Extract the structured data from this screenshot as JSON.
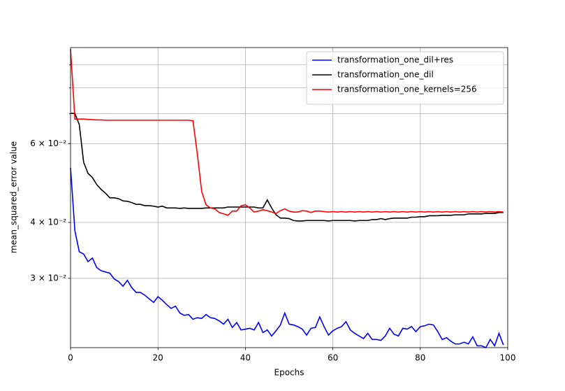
{
  "chart_data": {
    "type": "line",
    "xlabel": "Epochs",
    "ylabel": "mean_squared_error value",
    "x": [
      0,
      1,
      2,
      3,
      4,
      5,
      6,
      7,
      8,
      9,
      10,
      11,
      12,
      13,
      14,
      15,
      16,
      17,
      18,
      19,
      20,
      21,
      22,
      23,
      24,
      25,
      26,
      27,
      28,
      29,
      30,
      31,
      32,
      33,
      34,
      35,
      36,
      37,
      38,
      39,
      40,
      41,
      42,
      43,
      44,
      45,
      46,
      47,
      48,
      49,
      50,
      51,
      52,
      53,
      54,
      55,
      56,
      57,
      58,
      59,
      60,
      61,
      62,
      63,
      64,
      65,
      66,
      67,
      68,
      69,
      70,
      71,
      72,
      73,
      74,
      75,
      76,
      77,
      78,
      79,
      80,
      81,
      82,
      83,
      84,
      85,
      86,
      87,
      88,
      89,
      90,
      91,
      92,
      93,
      94,
      95,
      96,
      97,
      98,
      99
    ],
    "series": [
      {
        "name": "transformation_one_dil+res",
        "color": "#0000ff",
        "values": [
          0.053,
          0.0383,
          0.0344,
          0.034,
          0.0327,
          0.0333,
          0.0317,
          0.0312,
          0.031,
          0.0308,
          0.0299,
          0.0295,
          0.0288,
          0.0297,
          0.0286,
          0.0279,
          0.0279,
          0.0275,
          0.027,
          0.0265,
          0.0273,
          0.0268,
          0.0262,
          0.0257,
          0.026,
          0.0251,
          0.0248,
          0.0249,
          0.0243,
          0.0245,
          0.0244,
          0.0249,
          0.0245,
          0.0244,
          0.0241,
          0.0237,
          0.0243,
          0.0233,
          0.0239,
          0.023,
          0.0231,
          0.0232,
          0.023,
          0.0239,
          0.0227,
          0.023,
          0.0223,
          0.0229,
          0.0236,
          0.0251,
          0.0237,
          0.0236,
          0.0234,
          0.0231,
          0.0224,
          0.0232,
          0.0233,
          0.0246,
          0.0234,
          0.0224,
          0.0229,
          0.0232,
          0.0234,
          0.024,
          0.023,
          0.0226,
          0.0223,
          0.022,
          0.0226,
          0.0219,
          0.0219,
          0.0218,
          0.0223,
          0.0232,
          0.0225,
          0.0223,
          0.0232,
          0.0231,
          0.0234,
          0.0228,
          0.0234,
          0.0235,
          0.0237,
          0.0236,
          0.0228,
          0.0219,
          0.0221,
          0.0217,
          0.0214,
          0.0214,
          0.0216,
          0.0214,
          0.0222,
          0.0212,
          0.0212,
          0.021,
          0.0219,
          0.0212,
          0.0226,
          0.0213
        ]
      },
      {
        "name": "transformation_one_dil",
        "color": "#000000",
        "values": [
          0.0701,
          0.0701,
          0.0662,
          0.0545,
          0.0515,
          0.0504,
          0.0486,
          0.0474,
          0.0465,
          0.0454,
          0.0454,
          0.0452,
          0.0447,
          0.0446,
          0.0443,
          0.0439,
          0.0439,
          0.0436,
          0.0436,
          0.0435,
          0.0433,
          0.0435,
          0.0431,
          0.0431,
          0.0431,
          0.043,
          0.0431,
          0.043,
          0.043,
          0.043,
          0.043,
          0.0431,
          0.0431,
          0.0431,
          0.0431,
          0.0431,
          0.0433,
          0.0433,
          0.0433,
          0.0433,
          0.0433,
          0.0433,
          0.0433,
          0.0431,
          0.0431,
          0.0449,
          0.0431,
          0.0416,
          0.0409,
          0.0409,
          0.0408,
          0.0404,
          0.0403,
          0.0403,
          0.0404,
          0.0404,
          0.0404,
          0.0404,
          0.0404,
          0.0403,
          0.0404,
          0.0404,
          0.0404,
          0.0404,
          0.0404,
          0.0403,
          0.0404,
          0.0404,
          0.0404,
          0.0406,
          0.0406,
          0.0408,
          0.0406,
          0.0408,
          0.0409,
          0.0409,
          0.0409,
          0.0409,
          0.0411,
          0.0411,
          0.0412,
          0.0412,
          0.0414,
          0.0414,
          0.0414,
          0.0415,
          0.0415,
          0.0415,
          0.0416,
          0.0416,
          0.0416,
          0.0418,
          0.0418,
          0.0418,
          0.0418,
          0.0419,
          0.0419,
          0.0419,
          0.0421,
          0.0421
        ]
      },
      {
        "name": "transformation_one_kernels=256",
        "color": "#ff0000",
        "values": [
          0.0976,
          0.0681,
          0.0681,
          0.0681,
          0.068,
          0.0679,
          0.0678,
          0.0678,
          0.0677,
          0.0677,
          0.0677,
          0.0677,
          0.0677,
          0.0677,
          0.0677,
          0.0677,
          0.0677,
          0.0677,
          0.0677,
          0.0677,
          0.0677,
          0.0677,
          0.0677,
          0.0677,
          0.0677,
          0.0677,
          0.0677,
          0.0677,
          0.0675,
          0.0569,
          0.0469,
          0.0438,
          0.0431,
          0.0429,
          0.0421,
          0.0418,
          0.0415,
          0.0424,
          0.0424,
          0.0436,
          0.0438,
          0.0431,
          0.0422,
          0.0424,
          0.0427,
          0.0425,
          0.0422,
          0.0419,
          0.0425,
          0.0429,
          0.0424,
          0.0422,
          0.0422,
          0.0425,
          0.0424,
          0.0421,
          0.0424,
          0.0424,
          0.0423,
          0.0422,
          0.0423,
          0.0422,
          0.0423,
          0.0422,
          0.0423,
          0.0422,
          0.0423,
          0.0422,
          0.0423,
          0.0422,
          0.0423,
          0.0422,
          0.0423,
          0.0422,
          0.0423,
          0.0422,
          0.0423,
          0.0422,
          0.0423,
          0.0422,
          0.0423,
          0.0422,
          0.0423,
          0.0422,
          0.0423,
          0.0422,
          0.0423,
          0.0422,
          0.0423,
          0.0422,
          0.0423,
          0.0422,
          0.0423,
          0.0422,
          0.0423,
          0.0422,
          0.0423,
          0.0422,
          0.0423,
          0.0422
        ]
      }
    ],
    "xlim": [
      0,
      100
    ],
    "xticks": [
      0,
      20,
      40,
      60,
      80,
      100
    ],
    "ylim": [
      0.021,
      0.0984
    ],
    "yscale": "log",
    "yticks": [
      {
        "value": 0.03,
        "label": "3 × 10⁻²"
      },
      {
        "value": 0.04,
        "label": "4 × 10⁻²"
      },
      {
        "value": 0.06,
        "label": "6 × 10⁻²"
      }
    ],
    "yminorticks": [
      0.07,
      0.08,
      0.09
    ],
    "grid": true,
    "legend": "upper-right"
  }
}
